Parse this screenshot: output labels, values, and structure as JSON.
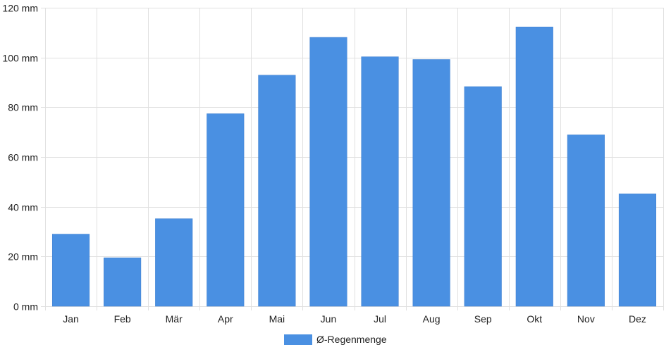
{
  "chart_data": {
    "type": "bar",
    "categories": [
      "Jan",
      "Feb",
      "Mär",
      "Apr",
      "Mai",
      "Jun",
      "Jul",
      "Aug",
      "Sep",
      "Okt",
      "Nov",
      "Dez"
    ],
    "series": [
      {
        "name": "Ø-Regenmenge",
        "values": [
          29,
          19.5,
          35.2,
          77.4,
          92.9,
          108.1,
          100.3,
          99.2,
          88.3,
          112.3,
          68.9,
          45.2
        ],
        "color": "#4a90e2"
      }
    ],
    "ylim": [
      0,
      120
    ],
    "y_ticks": [
      0,
      20,
      40,
      60,
      80,
      100,
      120
    ],
    "y_unit": "mm",
    "grid": true,
    "legend_position": "bottom-center",
    "colors": {
      "grid": "#e0e0e0",
      "text": "#222222",
      "bar": "#4a90e2"
    }
  }
}
